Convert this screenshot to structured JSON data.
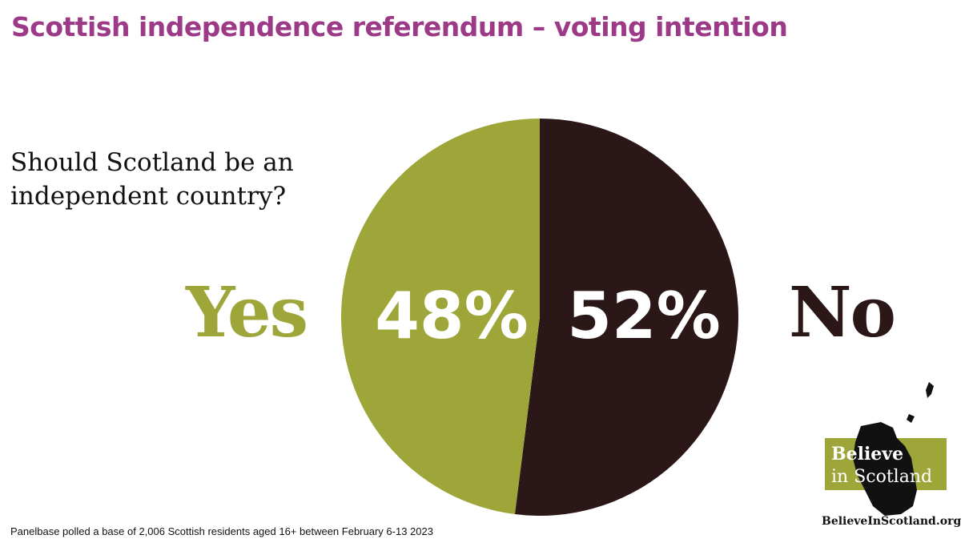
{
  "title": "Scottish independence referendum – voting intention",
  "question": "Should Scotland be an independent country?",
  "footer": "Panelbase polled a base of 2,006 Scottish residents aged 16+ between February 6-13 2023",
  "logo": {
    "line1": "Believe",
    "line2": "in Scotland",
    "url": "BelieveInScotland.org"
  },
  "chart_data": {
    "type": "pie",
    "title": "Scottish independence referendum – voting intention",
    "slices": [
      {
        "label": "No",
        "value": 52,
        "display": "52%",
        "color": "#2b1718"
      },
      {
        "label": "Yes",
        "value": 48,
        "display": "48%",
        "color": "#9ea63a"
      }
    ],
    "start": "top",
    "direction": "clockwise"
  }
}
